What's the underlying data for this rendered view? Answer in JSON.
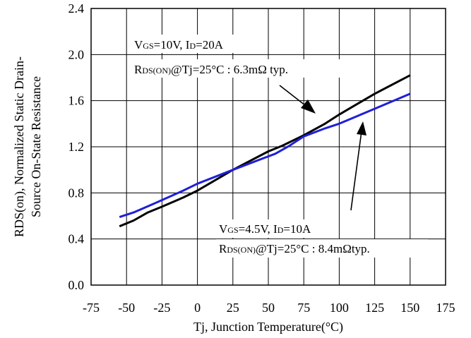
{
  "chart_data": {
    "type": "line",
    "xlabel": "Tj, Junction Temperature(°C)",
    "ylabel_line1": "RDS(on), Normalized Static Drain-",
    "ylabel_line2": "Source On-State Resistance",
    "xlim": [
      -75,
      175
    ],
    "ylim": [
      0.0,
      2.4
    ],
    "x_ticks": [
      -75,
      -50,
      -25,
      0,
      25,
      50,
      75,
      100,
      125,
      150,
      175
    ],
    "y_ticks": [
      "0.0",
      "0.4",
      "0.8",
      "1.2",
      "1.6",
      "2.0",
      "2.4"
    ],
    "grid": true,
    "series": [
      {
        "color": "#000000",
        "x": [
          -55,
          -45,
          -35,
          -25,
          -10,
          0,
          25,
          50,
          60,
          75,
          90,
          100,
          125,
          150
        ],
        "y": [
          0.51,
          0.56,
          0.63,
          0.68,
          0.76,
          0.82,
          1.0,
          1.16,
          1.21,
          1.3,
          1.4,
          1.48,
          1.66,
          1.82
        ]
      },
      {
        "color": "#1f1fd8",
        "x": [
          -55,
          -45,
          -30,
          -10,
          0,
          25,
          40,
          55,
          65,
          75,
          90,
          100,
          125,
          150
        ],
        "y": [
          0.59,
          0.63,
          0.71,
          0.82,
          0.88,
          1.0,
          1.07,
          1.14,
          1.21,
          1.29,
          1.36,
          1.4,
          1.53,
          1.66
        ]
      }
    ],
    "annotations": {
      "a1_line1_pre": "V",
      "a1_line1_sub1": "GS",
      "a1_line1_mid": "=10V, I",
      "a1_line1_sub2": "D",
      "a1_line1_post": "=20A",
      "a1_line2_pre": "R",
      "a1_line2_sub": "DS(ON)",
      "a1_line2_post": "@Tj=25°C : 6.3mΩ typ.",
      "a2_line1_pre": "V",
      "a2_line1_sub1": "GS",
      "a2_line1_mid": "=4.5V, I",
      "a2_line1_sub2": "D",
      "a2_line1_post": "=10A",
      "a2_line2_pre": "R",
      "a2_line2_sub": "DS(ON)",
      "a2_line2_post": "@Tj=25°C : 8.4mΩtyp."
    }
  }
}
